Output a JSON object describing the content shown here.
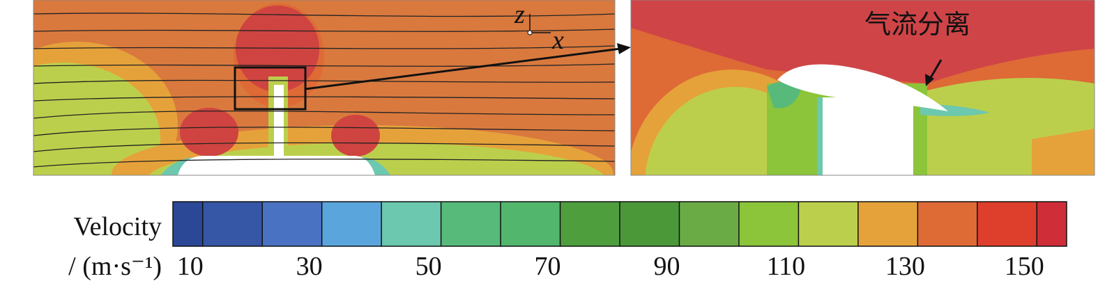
{
  "left_panel": {
    "axis_labels": [
      "z",
      "x"
    ]
  },
  "right_panel": {
    "annotation": "气流分离"
  },
  "colorbar": {
    "label": "Velocity",
    "unit": "/ (m·s⁻¹)",
    "lim": [
      5,
      155
    ],
    "boundaries": [
      10,
      20,
      30,
      40,
      50,
      60,
      70,
      80,
      90,
      100,
      110,
      120,
      130,
      140,
      150
    ],
    "colors": [
      "#2b4896",
      "#3656a6",
      "#4a72c2",
      "#5aa6dc",
      "#6cc8ae",
      "#57ba7a",
      "#52b66c",
      "#4e9e3e",
      "#4b9839",
      "#6aab45",
      "#8cc43a",
      "#bccf4c",
      "#e6a23a",
      "#de6a36",
      "#dd3f2c",
      "#cf2e38"
    ],
    "ticks": [
      10,
      30,
      50,
      70,
      90,
      110,
      130,
      150
    ]
  }
}
